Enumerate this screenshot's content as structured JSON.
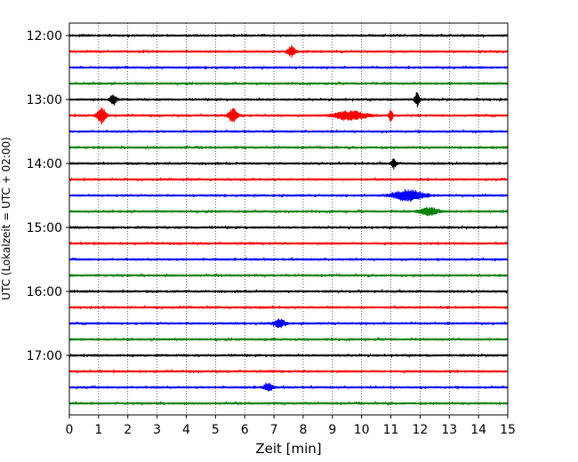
{
  "chart_data": {
    "type": "line",
    "title": "",
    "xlabel": "Zeit  [min]",
    "ylabel": "UTC (Lokalzeit = UTC + 02:00)",
    "xlim": [
      0,
      15
    ],
    "x_ticks": [
      "0",
      "1",
      "2",
      "3",
      "4",
      "5",
      "6",
      "7",
      "8",
      "9",
      "10",
      "11",
      "12",
      "13",
      "14",
      "15"
    ],
    "y_tick_labels": [
      "12:00",
      "13:00",
      "14:00",
      "15:00",
      "16:00",
      "17:00"
    ],
    "grid": "vertical-dotted",
    "trace_colors": [
      "#000000",
      "#ff0000",
      "#0000ff",
      "#008000"
    ],
    "trace_start_times": [
      "12:00",
      "12:15",
      "12:30",
      "12:45",
      "13:00",
      "13:15",
      "13:30",
      "13:45",
      "14:00",
      "14:15",
      "14:30",
      "14:45",
      "15:00",
      "15:15",
      "15:30",
      "15:45",
      "16:00",
      "16:15",
      "16:30",
      "16:45",
      "17:00",
      "17:15",
      "17:30",
      "17:45"
    ],
    "events": [
      {
        "trace": 1,
        "x_min": 7.6,
        "amp": 0.9,
        "width": 0.12
      },
      {
        "trace": 4,
        "x_min": 1.5,
        "amp": 1.0,
        "width": 0.1
      },
      {
        "trace": 4,
        "x_min": 11.9,
        "amp": 1.2,
        "width": 0.08
      },
      {
        "trace": 5,
        "x_min": 1.1,
        "amp": 1.4,
        "width": 0.15
      },
      {
        "trace": 5,
        "x_min": 5.6,
        "amp": 1.0,
        "width": 0.15
      },
      {
        "trace": 5,
        "x_min": 9.6,
        "amp": 0.8,
        "width": 0.5
      },
      {
        "trace": 5,
        "x_min": 11.0,
        "amp": 1.0,
        "width": 0.06
      },
      {
        "trace": 8,
        "x_min": 11.1,
        "amp": 0.8,
        "width": 0.08
      },
      {
        "trace": 10,
        "x_min": 11.6,
        "amp": 0.9,
        "width": 0.5
      },
      {
        "trace": 11,
        "x_min": 12.3,
        "amp": 0.6,
        "width": 0.3
      },
      {
        "trace": 18,
        "x_min": 7.2,
        "amp": 0.6,
        "width": 0.2
      },
      {
        "trace": 22,
        "x_min": 6.8,
        "amp": 0.6,
        "width": 0.15
      }
    ]
  }
}
